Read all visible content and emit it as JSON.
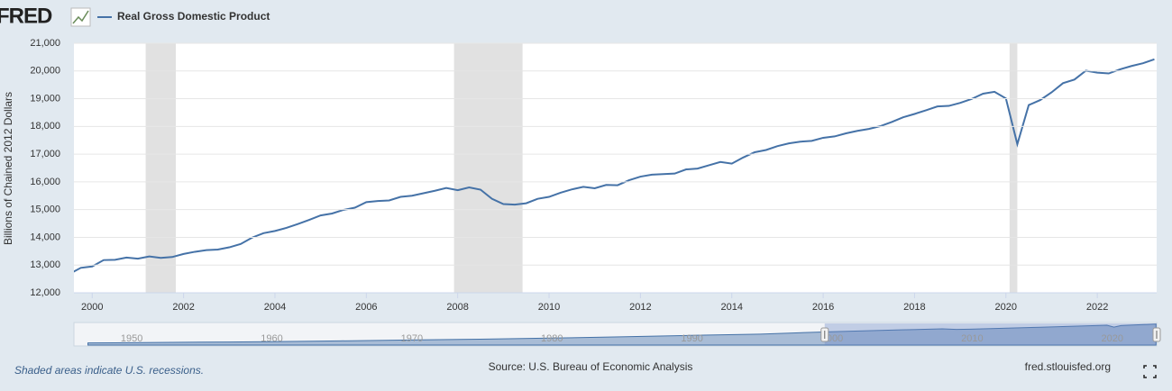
{
  "logo": "FRED",
  "footer": {
    "note": "Shaded areas indicate U.S. recessions.",
    "source": "Source: U.S. Bureau of Economic Analysis",
    "site": "fred.stlouisfed.org"
  },
  "chart_data": {
    "type": "line",
    "y_label": "Billions of Chained 2012 Dollars",
    "series": [
      {
        "name": "Real Gross Domestic Product",
        "color": "#4572a7",
        "x": [
          1999.5,
          1999.75,
          2000,
          2000.25,
          2000.5,
          2000.75,
          2001,
          2001.25,
          2001.5,
          2001.75,
          2002,
          2002.25,
          2002.5,
          2002.75,
          2003,
          2003.25,
          2003.5,
          2003.75,
          2004,
          2004.25,
          2004.5,
          2004.75,
          2005,
          2005.25,
          2005.5,
          2005.75,
          2006,
          2006.25,
          2006.5,
          2006.75,
          2007,
          2007.25,
          2007.5,
          2007.75,
          2008,
          2008.25,
          2008.5,
          2008.75,
          2009,
          2009.25,
          2009.5,
          2009.75,
          2010,
          2010.25,
          2010.5,
          2010.75,
          2011,
          2011.25,
          2011.5,
          2011.75,
          2012,
          2012.25,
          2012.5,
          2012.75,
          2013,
          2013.25,
          2013.5,
          2013.75,
          2014,
          2014.25,
          2014.5,
          2014.75,
          2015,
          2015.25,
          2015.5,
          2015.75,
          2016,
          2016.25,
          2016.5,
          2016.75,
          2017,
          2017.25,
          2017.5,
          2017.75,
          2018,
          2018.25,
          2018.5,
          2018.75,
          2019,
          2019.25,
          2019.5,
          2019.75,
          2020,
          2020.25,
          2020.5,
          2020.75,
          2021,
          2021.25,
          2021.5,
          2021.75,
          2022,
          2022.25,
          2022.5,
          2022.75,
          2023,
          2023.25
        ],
        "values": [
          12680,
          12900,
          12950,
          13180,
          13190,
          13270,
          13230,
          13310,
          13260,
          13290,
          13400,
          13480,
          13540,
          13560,
          13640,
          13760,
          13990,
          14150,
          14230,
          14340,
          14480,
          14630,
          14790,
          14860,
          14990,
          15070,
          15270,
          15310,
          15330,
          15460,
          15500,
          15590,
          15680,
          15780,
          15700,
          15800,
          15720,
          15390,
          15200,
          15180,
          15230,
          15390,
          15460,
          15610,
          15730,
          15820,
          15770,
          15890,
          15880,
          16060,
          16190,
          16260,
          16280,
          16300,
          16450,
          16480,
          16600,
          16720,
          16660,
          16880,
          17070,
          17150,
          17290,
          17390,
          17450,
          17480,
          17590,
          17640,
          17750,
          17840,
          17910,
          18010,
          18160,
          18330,
          18450,
          18580,
          18720,
          18740,
          18850,
          18990,
          19180,
          19250,
          19010,
          17360,
          18770,
          18950,
          19230,
          19560,
          19690,
          20010,
          19940,
          19910,
          20060,
          20180,
          20280,
          20420
        ]
      }
    ],
    "recessions": [
      [
        2001.17,
        2001.83
      ],
      [
        2007.92,
        2009.42
      ],
      [
        2020.08,
        2020.25
      ]
    ],
    "xlim": [
      1999.6,
      2023.3
    ],
    "xticks": [
      2000,
      2002,
      2004,
      2006,
      2008,
      2010,
      2012,
      2014,
      2016,
      2018,
      2020,
      2022
    ],
    "ylim": [
      12000,
      21000
    ],
    "yticks": [
      {
        "value": 12000,
        "label": "12,000"
      },
      {
        "value": 13000,
        "label": "13,000"
      },
      {
        "value": 14000,
        "label": "14,000"
      },
      {
        "value": 15000,
        "label": "15,000"
      },
      {
        "value": 16000,
        "label": "16,000"
      },
      {
        "value": 17000,
        "label": "17,000"
      },
      {
        "value": 18000,
        "label": "18,000"
      },
      {
        "value": 19000,
        "label": "19,000"
      },
      {
        "value": 20000,
        "label": "20,000"
      },
      {
        "value": 21000,
        "label": "21,000"
      }
    ],
    "grid": true,
    "navigator": {
      "x": [
        1947,
        1950,
        1955,
        1960,
        1965,
        1970,
        1975,
        1980,
        1985,
        1990,
        1995,
        2000,
        2005,
        2008,
        2009,
        2010,
        2015,
        2019.75,
        2020.25,
        2020.75,
        2023.25
      ],
      "values": [
        2030,
        2300,
        2800,
        3270,
        4050,
        4950,
        5650,
        6760,
        7950,
        9370,
        10630,
        12950,
        14790,
        15700,
        15200,
        15460,
        17290,
        19250,
        17360,
        18950,
        20420
      ],
      "xlim": [
        1946,
        2023.3
      ],
      "ylim": [
        0,
        21000
      ],
      "xticks": [
        1950,
        1960,
        1970,
        1980,
        1990,
        2000,
        2010,
        2020
      ]
    }
  }
}
